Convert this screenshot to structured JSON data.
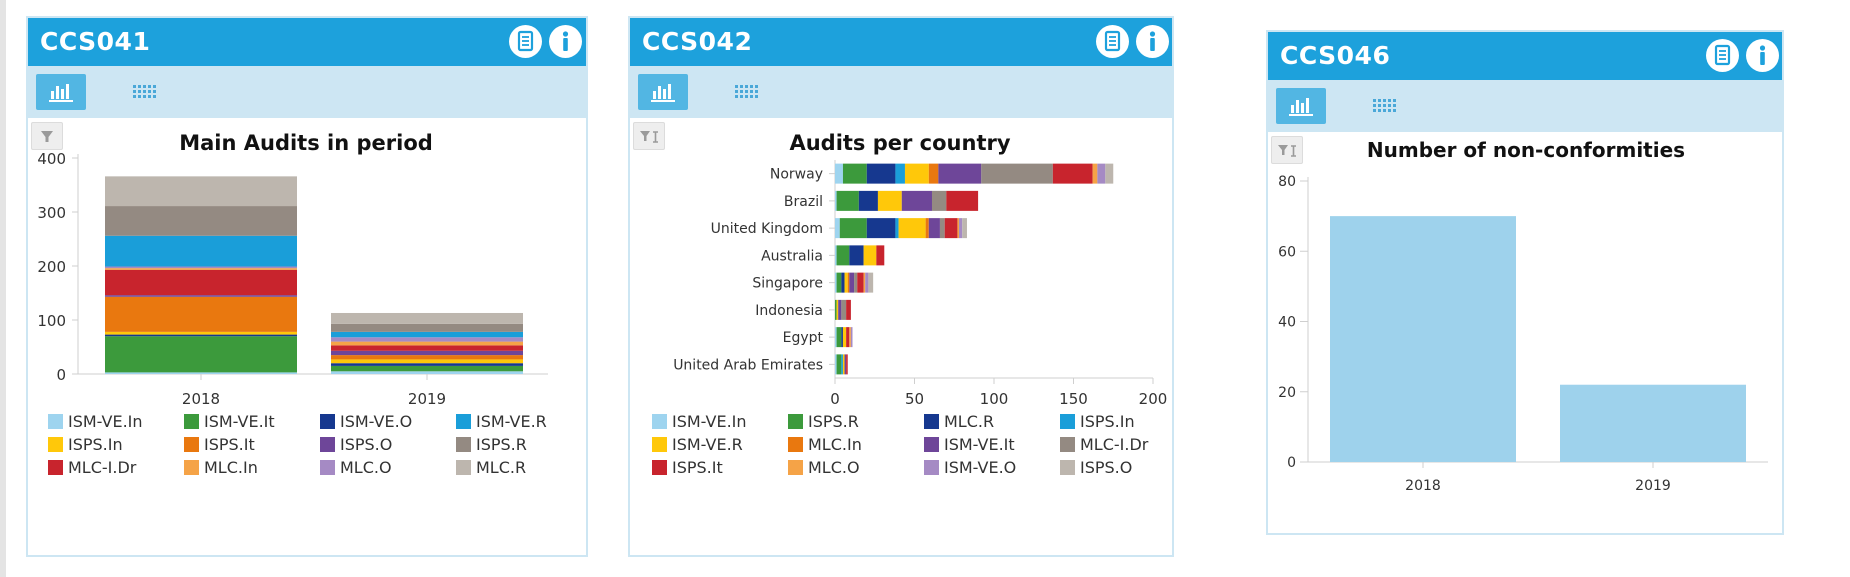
{
  "widgets": [
    {
      "title": "CCS041",
      "chart_data": {
        "type": "bar",
        "orientation": "vertical",
        "stacked": true,
        "title": "Main Audits in period",
        "categories": [
          "2018",
          "2019"
        ],
        "yticks": [
          0,
          100,
          200,
          300,
          400
        ],
        "ylim": [
          0,
          400
        ],
        "legend_position": "bottom",
        "series": [
          {
            "name": "ISM-VE.In",
            "color": "#9ed4ef",
            "values": [
              3,
              5
            ]
          },
          {
            "name": "ISM-VE.It",
            "color": "#3c9a3c",
            "values": [
              67,
              10
            ]
          },
          {
            "name": "ISM-VE.O",
            "color": "#16388f",
            "values": [
              3,
              5
            ]
          },
          {
            "name": "ISPS.In",
            "color": "#ffc80a",
            "values": [
              5,
              7
            ]
          },
          {
            "name": "ISPS.It",
            "color": "#e9780f",
            "values": [
              65,
              8
            ]
          },
          {
            "name": "ISPS.O",
            "color": "#6e4699",
            "values": [
              3,
              8
            ]
          },
          {
            "name": "MLC-I.Dr",
            "color": "#c8242d",
            "values": [
              47,
              10
            ]
          },
          {
            "name": "MLC.In",
            "color": "#f5a347",
            "values": [
              3,
              7
            ]
          },
          {
            "name": "MLC.O",
            "color": "#a58ac4",
            "values": [
              3,
              8
            ]
          },
          {
            "name": "ISM-VE.R",
            "color": "#1a9ed9",
            "values": [
              57,
              10
            ]
          },
          {
            "name": "ISPS.R",
            "color": "#948a82",
            "values": [
              55,
              15
            ]
          },
          {
            "name": "MLC.R",
            "color": "#bdb6ae",
            "values": [
              55,
              20
            ]
          }
        ],
        "legend_order": [
          "ISM-VE.In",
          "ISM-VE.It",
          "ISM-VE.O",
          "ISM-VE.R",
          "ISPS.In",
          "ISPS.It",
          "ISPS.O",
          "ISPS.R",
          "MLC-I.Dr",
          "MLC.In",
          "MLC.O",
          "MLC.R"
        ]
      }
    },
    {
      "title": "CCS042",
      "chart_data": {
        "type": "bar",
        "orientation": "horizontal",
        "stacked": true,
        "title": "Audits per country",
        "categories": [
          "Norway",
          "Brazil",
          "United Kingdom",
          "Australia",
          "Singapore",
          "Indonesia",
          "Egypt",
          "United Arab Emirates"
        ],
        "xticks": [
          0,
          50,
          100,
          150,
          200
        ],
        "xlim": [
          0,
          200
        ],
        "legend_position": "bottom",
        "series": [
          {
            "name": "ISM-VE.In",
            "color": "#9ed4ef",
            "values": [
              5,
              1,
              3,
              1,
              1,
              0,
              1,
              1
            ]
          },
          {
            "name": "ISPS.R",
            "color": "#3c9a3c",
            "values": [
              15,
              14,
              17,
              8,
              3,
              1,
              3,
              3
            ]
          },
          {
            "name": "MLC.R",
            "color": "#16388f",
            "values": [
              18,
              12,
              18,
              9,
              2,
              0,
              1,
              0
            ]
          },
          {
            "name": "ISPS.In",
            "color": "#1a9ed9",
            "values": [
              6,
              0,
              2,
              0,
              0,
              0,
              0,
              1
            ]
          },
          {
            "name": "ISM-VE.R",
            "color": "#ffc80a",
            "values": [
              15,
              15,
              17,
              8,
              2,
              1,
              2,
              1
            ]
          },
          {
            "name": "MLC.In",
            "color": "#e9780f",
            "values": [
              6,
              0,
              2,
              0,
              1,
              0,
              0,
              0
            ]
          },
          {
            "name": "ISM-VE.It",
            "color": "#6e4699",
            "values": [
              27,
              19,
              7,
              0,
              3,
              2,
              0,
              1
            ]
          },
          {
            "name": "MLC-I.Dr",
            "color": "#948a82",
            "values": [
              45,
              9,
              3,
              0,
              2,
              3,
              0,
              0
            ]
          },
          {
            "name": "ISPS.It",
            "color": "#c8242d",
            "values": [
              25,
              20,
              8,
              5,
              4,
              3,
              2,
              1
            ]
          },
          {
            "name": "MLC.O",
            "color": "#f5a347",
            "values": [
              3,
              0,
              1,
              0,
              1,
              0,
              1,
              0
            ]
          },
          {
            "name": "ISM-VE.O",
            "color": "#a58ac4",
            "values": [
              5,
              0,
              2,
              0,
              2,
              0,
              1,
              0
            ]
          },
          {
            "name": "ISPS.O",
            "color": "#bdb6ae",
            "values": [
              5,
              0,
              3,
              0,
              3,
              0,
              0,
              0
            ]
          }
        ],
        "legend_order": [
          "ISM-VE.In",
          "ISPS.R",
          "MLC.R",
          "ISPS.In",
          "ISM-VE.R",
          "MLC.In",
          "ISM-VE.It",
          "MLC-I.Dr",
          "ISPS.It",
          "MLC.O",
          "ISM-VE.O",
          "ISPS.O"
        ]
      }
    },
    {
      "title": "CCS046",
      "chart_data": {
        "type": "bar",
        "orientation": "vertical",
        "stacked": false,
        "title": "Number of non-conformities",
        "categories": [
          "2018",
          "2019"
        ],
        "values": [
          70,
          22
        ],
        "yticks": [
          0,
          20,
          40,
          60,
          80
        ],
        "ylim": [
          0,
          80
        ],
        "bar_color": "#9ed2ec"
      }
    }
  ]
}
